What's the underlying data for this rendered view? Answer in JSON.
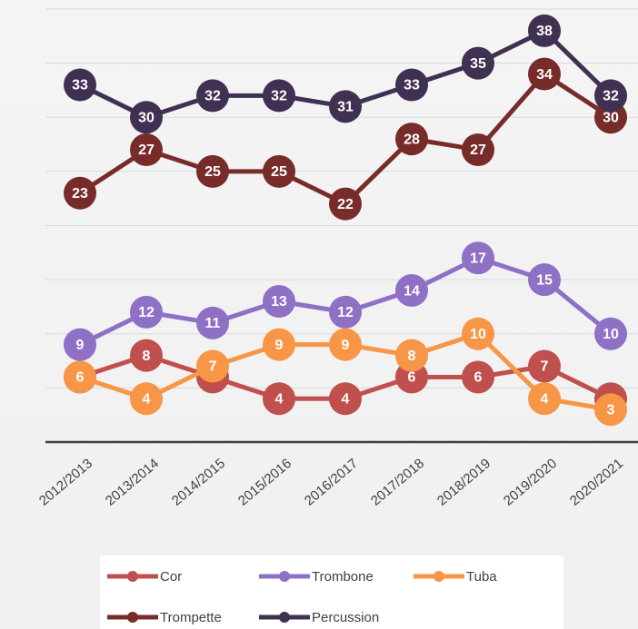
{
  "chart_data": {
    "type": "line",
    "categories": [
      "2012/2013",
      "2013/2014",
      "2014/2015",
      "2015/2016",
      "2016/2017",
      "2017/2018",
      "2018/2019",
      "2019/2020",
      "2020/2021"
    ],
    "series": [
      {
        "name": "Cor",
        "color": "#c0504d",
        "values": [
          6,
          8,
          6,
          4,
          4,
          6,
          6,
          7,
          4
        ]
      },
      {
        "name": "Trombone",
        "color": "#8e70c4",
        "values": [
          9,
          12,
          11,
          13,
          12,
          14,
          17,
          15,
          10
        ]
      },
      {
        "name": "Tuba",
        "color": "#f79646",
        "values": [
          6,
          4,
          7,
          9,
          9,
          8,
          10,
          4,
          3
        ]
      },
      {
        "name": "Trompette",
        "color": "#772c2a",
        "values": [
          23,
          27,
          25,
          25,
          22,
          28,
          27,
          34,
          30
        ]
      },
      {
        "name": "Percussion",
        "color": "#403152",
        "values": [
          33,
          30,
          32,
          32,
          31,
          33,
          35,
          38,
          32
        ]
      }
    ],
    "ylim": [
      0,
      40
    ],
    "yticks": [
      0,
      5,
      10,
      15,
      20,
      25,
      30,
      35,
      40
    ],
    "grid": true
  }
}
